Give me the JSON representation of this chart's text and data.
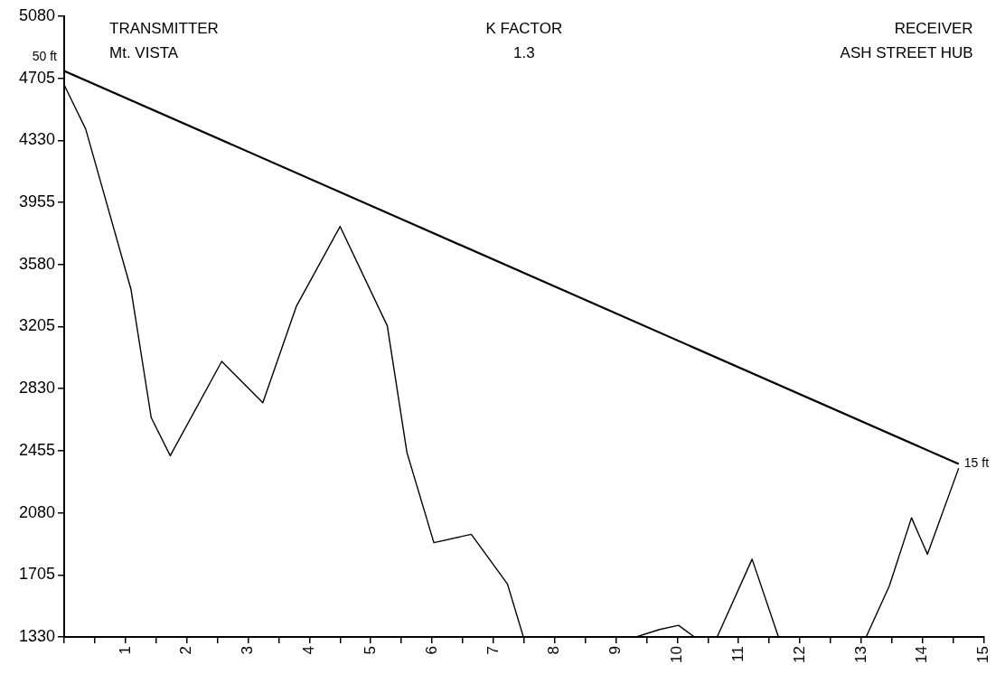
{
  "chart_data": {
    "type": "line",
    "annotations": [
      "TRANSMITTER\nMt. VISTA",
      "K FACTOR\n1.3",
      "RECEIVER\nASH STREET HUB",
      {
        "text": "50 ft",
        "x": 0,
        "y": 4750
      },
      {
        "text": "15 ft",
        "x": 14.59,
        "y": 2375
      }
    ],
    "series": [
      {
        "color": "#000000",
        "x": [
          0,
          0.35,
          1.09,
          1.42,
          1.73,
          2.57,
          3.24,
          3.79,
          4.5,
          5.27,
          5.59,
          6.03,
          6.64,
          7.23,
          7.49,
          9.33,
          9.71,
          10.02,
          10.28,
          10.65,
          11.22,
          11.65,
          13.08,
          13.46,
          13.82,
          14.08,
          14.59
        ],
        "values": [
          4665,
          4400,
          3430,
          2655,
          2425,
          2995,
          2745,
          3330,
          3810,
          3210,
          2445,
          1900,
          1950,
          1650,
          1330,
          1330,
          1375,
          1400,
          1330,
          1330,
          1800,
          1330,
          1330,
          1640,
          2050,
          1830,
          2350
        ]
      },
      {
        "color": "#000000",
        "x": [
          0,
          14.59
        ],
        "values": [
          4750,
          2375
        ]
      }
    ],
    "xlim": [
      0,
      15
    ],
    "xticks": [
      {
        "value": 0,
        "label": null
      },
      {
        "value": 0.5,
        "label": null
      },
      1,
      {
        "value": 1.5,
        "label": null
      },
      2,
      {
        "value": 2.5,
        "label": null
      },
      3,
      {
        "value": 3.5,
        "label": null
      },
      4,
      {
        "value": 4.5,
        "label": null
      },
      5,
      {
        "value": 5.5,
        "label": null
      },
      6,
      {
        "value": 6.5,
        "label": null
      },
      7,
      {
        "value": 7.5,
        "label": null
      },
      8,
      {
        "value": 8.5,
        "label": null
      },
      9,
      {
        "value": 9.5,
        "label": null
      },
      10,
      {
        "value": 10.5,
        "label": null
      },
      11,
      {
        "value": 11.5,
        "label": null
      },
      12,
      {
        "value": 12.5,
        "label": null
      },
      13,
      {
        "value": 13.5,
        "label": null
      },
      14,
      {
        "value": 14.5,
        "label": null
      },
      15
    ],
    "ylim": [
      1330,
      5080
    ],
    "yticks": [
      1330,
      1705,
      2080,
      2455,
      2830,
      3205,
      3580,
      3955,
      4330,
      4705,
      5080
    ],
    "grid": false,
    "legend": false,
    "marker": "none",
    "line_style": "solid"
  }
}
